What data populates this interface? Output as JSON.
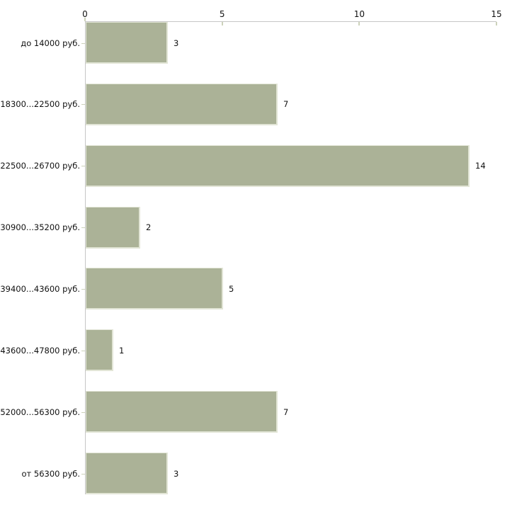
{
  "chart_data": {
    "type": "bar",
    "orientation": "horizontal",
    "title": "",
    "xlabel": "",
    "ylabel": "",
    "axis_position": "top",
    "xlim": [
      0,
      15
    ],
    "x_ticks": [
      0,
      5,
      10,
      15
    ],
    "grid": false,
    "legend": false,
    "value_labels": true,
    "categories": [
      "до 14000 руб.",
      "18300...22500 руб.",
      "22500...26700 руб.",
      "30900...35200 руб.",
      "39400...43600 руб.",
      "43600...47800 руб.",
      "52000...56300 руб.",
      "от 56300 руб."
    ],
    "values": [
      3,
      7,
      14,
      2,
      5,
      1,
      7,
      3
    ],
    "colors": {
      "bar_fill": "#abb297",
      "bar_edge": "#e2e5d6",
      "axis_line": "#c6c6c6",
      "tick_mark": "#cdd2bb",
      "text": "#111111",
      "background": "#ffffff"
    }
  }
}
